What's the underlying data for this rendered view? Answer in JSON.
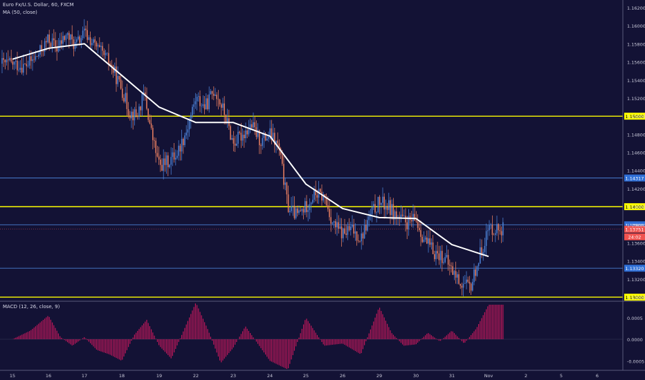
{
  "header": {
    "symbol_title": "Euro Fx/U.S. Dollar, 60, FXCM",
    "ma_label": "MA (50, close)",
    "macd_label": "MACD (12, 26, close, 9)"
  },
  "chart_data": [
    {
      "type": "candlestick",
      "title": "Euro Fx/U.S. Dollar, 60, FXCM",
      "x_ticks": [
        "15",
        "16",
        "17",
        "18",
        "19",
        "22",
        "23",
        "24",
        "25",
        "26",
        "29",
        "30",
        "31",
        "Nov",
        "2",
        "5",
        "6"
      ],
      "y_ticks": [
        "1.16200",
        "1.16000",
        "1.15800",
        "1.15600",
        "1.15400",
        "1.15200",
        "1.15000",
        "1.14800",
        "1.14600",
        "1.14400",
        "1.14200",
        "1.14000",
        "1.13800",
        "1.13600",
        "1.13400",
        "1.13200",
        "1.13000"
      ],
      "ylim": [
        1.12955,
        1.16284
      ],
      "grid": false,
      "close_path": [
        [
          "15",
          1.1558
        ],
        [
          "15",
          1.1555
        ],
        [
          "15",
          1.1565
        ],
        [
          "16",
          1.1585
        ],
        [
          "16",
          1.1575
        ],
        [
          "16",
          1.159
        ],
        [
          "16",
          1.1578
        ],
        [
          "17",
          1.1592
        ],
        [
          "17",
          1.1575
        ],
        [
          "17",
          1.156
        ],
        [
          "18",
          1.153
        ],
        [
          "18",
          1.1505
        ],
        [
          "18",
          1.15
        ],
        [
          "18",
          1.1525
        ],
        [
          "18",
          1.148
        ],
        [
          "19",
          1.1445
        ],
        [
          "19",
          1.145
        ],
        [
          "19",
          1.146
        ],
        [
          "19",
          1.1485
        ],
        [
          "22",
          1.152
        ],
        [
          "22",
          1.151
        ],
        [
          "22",
          1.153
        ],
        [
          "22",
          1.1505
        ],
        [
          "23",
          1.147
        ],
        [
          "23",
          1.148
        ],
        [
          "23",
          1.149
        ],
        [
          "23",
          1.1472
        ],
        [
          "24",
          1.148
        ],
        [
          "24",
          1.1465
        ],
        [
          "24",
          1.14
        ],
        [
          "24",
          1.139
        ],
        [
          "25",
          1.14
        ],
        [
          "25",
          1.1415
        ],
        [
          "25",
          1.141
        ],
        [
          "25",
          1.138
        ],
        [
          "26",
          1.137
        ],
        [
          "26",
          1.1375
        ],
        [
          "26",
          1.1365
        ],
        [
          "26",
          1.139
        ],
        [
          "29",
          1.1405
        ],
        [
          "29",
          1.14
        ],
        [
          "29",
          1.1388
        ],
        [
          "29",
          1.1382
        ],
        [
          "30",
          1.1385
        ],
        [
          "30",
          1.1362
        ],
        [
          "30",
          1.135
        ],
        [
          "30",
          1.1345
        ],
        [
          "31",
          1.133
        ],
        [
          "31",
          1.1315
        ],
        [
          "31",
          1.131
        ],
        [
          "31",
          1.1345
        ],
        [
          "Nov",
          1.1376
        ]
      ],
      "last_price": "1.13751",
      "last_price_timer": "24:02",
      "horizontal_levels": [
        {
          "value": "1.15000",
          "color": "#ffff00"
        },
        {
          "value": "1.14317",
          "color": "#4a7fd4"
        },
        {
          "value": "1.14000",
          "color": "#ffff00"
        },
        {
          "value": "1.13800",
          "color": "#4a7fd4"
        },
        {
          "value": "1.13320",
          "color": "#4a7fd4"
        },
        {
          "value": "1.13000",
          "color": "#ffff00"
        }
      ],
      "series": [
        {
          "name": "MA (50, close)",
          "color": "#ffffff",
          "values": [
            [
              "15",
              1.1563
            ],
            [
              "16",
              1.1575
            ],
            [
              "17",
              1.158
            ],
            [
              "18",
              1.1545
            ],
            [
              "19",
              1.151
            ],
            [
              "22",
              1.1493
            ],
            [
              "23",
              1.1493
            ],
            [
              "24",
              1.1478
            ],
            [
              "25",
              1.1425
            ],
            [
              "26",
              1.1398
            ],
            [
              "29",
              1.1388
            ],
            [
              "30",
              1.1387
            ],
            [
              "31",
              1.1358
            ],
            [
              "Nov",
              1.1345
            ]
          ]
        }
      ],
      "colors": {
        "up": "#4a7fd4",
        "down": "#e07a5f",
        "background": "#131235",
        "last": "#ef5350"
      }
    },
    {
      "type": "bar",
      "title": "MACD (12, 26, close, 9)",
      "y_ticks": [
        "0.0005",
        "0.0000",
        "-0.0005"
      ],
      "ylim": [
        -0.00072,
        0.00088
      ],
      "color": "#c2185b",
      "histogram_path": [
        [
          "15",
          0.0
        ],
        [
          "15",
          0.0002
        ],
        [
          "16",
          0.00055
        ],
        [
          "16",
          5e-05
        ],
        [
          "16",
          -0.00015
        ],
        [
          "17",
          5e-05
        ],
        [
          "17",
          -0.00025
        ],
        [
          "17",
          -0.00035
        ],
        [
          "18",
          -0.0005
        ],
        [
          "18",
          0.0001
        ],
        [
          "18",
          0.00045
        ],
        [
          "19",
          -0.00015
        ],
        [
          "19",
          -0.00045
        ],
        [
          "19",
          0.0002
        ],
        [
          "22",
          0.00085
        ],
        [
          "22",
          0.0002
        ],
        [
          "22",
          -0.00055
        ],
        [
          "23",
          -0.0002
        ],
        [
          "23",
          0.0003
        ],
        [
          "23",
          -0.0001
        ],
        [
          "24",
          -0.0005
        ],
        [
          "24",
          -0.0007
        ],
        [
          "25",
          0.0005
        ],
        [
          "25",
          -0.00015
        ],
        [
          "26",
          -0.0001
        ],
        [
          "26",
          -0.00035
        ],
        [
          "29",
          0.00075
        ],
        [
          "29",
          0.00015
        ],
        [
          "29",
          -0.00015
        ],
        [
          "30",
          -0.00012
        ],
        [
          "30",
          0.00015
        ],
        [
          "30",
          -5e-05
        ],
        [
          "31",
          0.0002
        ],
        [
          "31",
          -0.0001
        ],
        [
          "31",
          0.00025
        ],
        [
          "Nov",
          0.0008
        ]
      ]
    }
  ]
}
